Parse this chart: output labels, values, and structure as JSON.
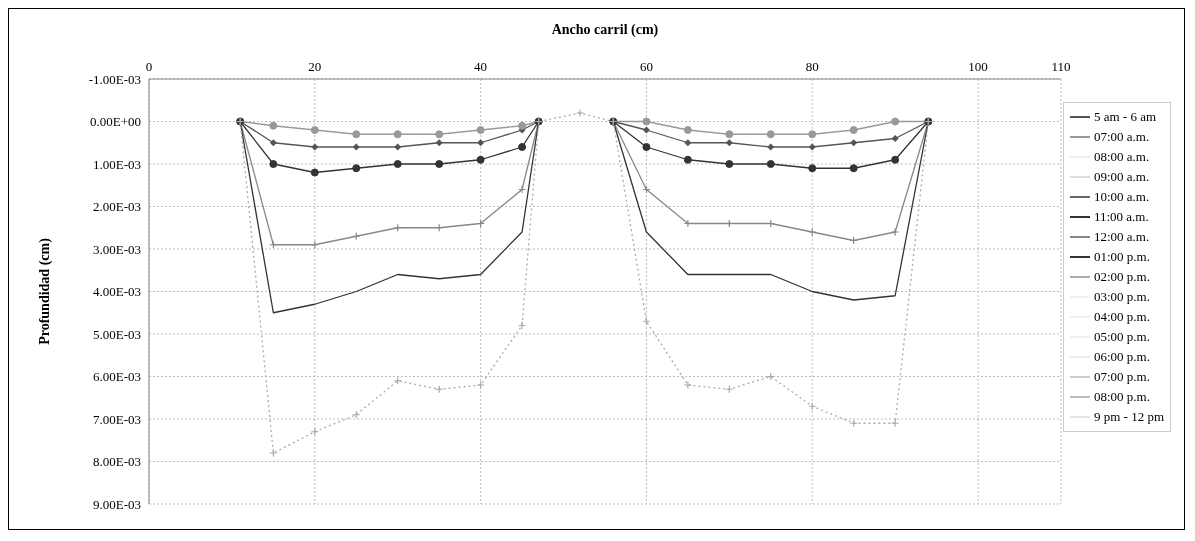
{
  "chart_data": {
    "type": "line",
    "xlabel": "Ancho carril (cm)",
    "ylabel": "Profundidad (cm)",
    "x": [
      11,
      15,
      20,
      25,
      30,
      35,
      40,
      45,
      47,
      52,
      56,
      60,
      65,
      70,
      75,
      80,
      85,
      90,
      94
    ],
    "xlim": [
      0,
      110
    ],
    "xticks": [
      0,
      20,
      40,
      60,
      80,
      100,
      110
    ],
    "ylim": [
      0.009,
      -0.001
    ],
    "yticks": [
      {
        "value": -0.001,
        "label": "-1.00E-03"
      },
      {
        "value": 0,
        "label": "0.00E+00"
      },
      {
        "value": 0.001,
        "label": "1.00E-03"
      },
      {
        "value": 0.002,
        "label": "2.00E-03"
      },
      {
        "value": 0.003,
        "label": "3.00E-03"
      },
      {
        "value": 0.004,
        "label": "4.00E-03"
      },
      {
        "value": 0.005,
        "label": "5.00E-03"
      },
      {
        "value": 0.006,
        "label": "6.00E-03"
      },
      {
        "value": 0.007,
        "label": "7.00E-03"
      },
      {
        "value": 0.008,
        "label": "8.00E-03"
      },
      {
        "value": 0.009,
        "label": "9.00E-03"
      }
    ],
    "grid": true,
    "legend": "right",
    "series": [
      {
        "name": "5 am - 6 am",
        "color": "#555555",
        "marker": "diamond",
        "values": [
          0,
          0.0005,
          0.0006,
          0.0006,
          0.0006,
          0.0005,
          0.0005,
          0.0002,
          0,
          null,
          0,
          0.0002,
          0.0005,
          0.0005,
          0.0006,
          0.0006,
          0.0005,
          0.0004,
          0
        ]
      },
      {
        "name": "07:00 a.m.",
        "color": "#999999",
        "marker": "circle",
        "values": [
          0,
          0.0001,
          0.0002,
          0.0003,
          0.0003,
          0.0003,
          0.0002,
          0.0001,
          0,
          null,
          0,
          0,
          0.0002,
          0.0003,
          0.0003,
          0.0003,
          0.0002,
          0,
          0
        ]
      },
      {
        "name": "08:00 a.m.",
        "color": "#eeeeee",
        "values": [
          null,
          null,
          null,
          null,
          null,
          null,
          null,
          null,
          null,
          null,
          null,
          null,
          null,
          null,
          null,
          null,
          null,
          null,
          null
        ]
      },
      {
        "name": "09:00 a.m.",
        "color": "#dddddd",
        "values": [
          null,
          null,
          null,
          null,
          null,
          null,
          null,
          null,
          null,
          null,
          null,
          null,
          null,
          null,
          null,
          null,
          null,
          null,
          null
        ]
      },
      {
        "name": "10:00 a.m.",
        "color": "#666666",
        "marker": "square",
        "values": [
          null,
          null,
          null,
          null,
          null,
          null,
          null,
          null,
          null,
          null,
          null,
          null,
          null,
          null,
          null,
          null,
          null,
          null,
          null
        ]
      },
      {
        "name": "11:00 a.m.",
        "color": "#333333",
        "marker": "circle",
        "values": [
          0,
          0.001,
          0.0012,
          0.0011,
          0.001,
          0.001,
          0.0009,
          0.0006,
          0,
          null,
          0,
          0.0006,
          0.0009,
          0.001,
          0.001,
          0.0011,
          0.0011,
          0.0009,
          0
        ]
      },
      {
        "name": "12:00 a.m.",
        "color": "#888888",
        "marker": "cross",
        "values": [
          0,
          0.0029,
          0.0029,
          0.0027,
          0.0025,
          0.0025,
          0.0024,
          0.0016,
          0,
          null,
          0,
          0.0016,
          0.0024,
          0.0024,
          0.0024,
          0.0026,
          0.0028,
          0.0026,
          0
        ]
      },
      {
        "name": "01:00 p.m.",
        "color": "#333333",
        "marker": "none",
        "values": [
          0,
          0.0045,
          0.0043,
          0.004,
          0.0036,
          0.0037,
          0.0036,
          0.0026,
          0,
          null,
          0,
          0.0026,
          0.0036,
          0.0036,
          0.0036,
          0.004,
          0.0042,
          0.0041,
          0
        ]
      },
      {
        "name": "02:00 p.m.",
        "color": "#aaaaaa",
        "marker": "cross",
        "line_style": "dotted",
        "values": [
          0,
          0.0078,
          0.0073,
          0.0069,
          0.0061,
          0.0063,
          0.0062,
          0.0048,
          0,
          -0.0002,
          0,
          0.0047,
          0.0062,
          0.0063,
          0.006,
          0.0067,
          0.0071,
          0.0071,
          0
        ]
      },
      {
        "name": "03:00 p.m.",
        "color": "#f2f2f2",
        "values": [
          null,
          null,
          null,
          null,
          null,
          null,
          null,
          null,
          null,
          null,
          null,
          null,
          null,
          null,
          null,
          null,
          null,
          null,
          null
        ]
      },
      {
        "name": "04:00 p.m.",
        "color": "#f0f0f0",
        "values": [
          null,
          null,
          null,
          null,
          null,
          null,
          null,
          null,
          null,
          null,
          null,
          null,
          null,
          null,
          null,
          null,
          null,
          null,
          null
        ]
      },
      {
        "name": "05:00 p.m.",
        "color": "#efefef",
        "values": [
          null,
          null,
          null,
          null,
          null,
          null,
          null,
          null,
          null,
          null,
          null,
          null,
          null,
          null,
          null,
          null,
          null,
          null,
          null
        ]
      },
      {
        "name": "06:00 p.m.",
        "color": "#ededed",
        "values": [
          null,
          null,
          null,
          null,
          null,
          null,
          null,
          null,
          null,
          null,
          null,
          null,
          null,
          null,
          null,
          null,
          null,
          null,
          null
        ]
      },
      {
        "name": "07:00 p.m.",
        "color": "#cccccc",
        "values": [
          null,
          null,
          null,
          null,
          null,
          null,
          null,
          null,
          null,
          null,
          null,
          null,
          null,
          null,
          null,
          null,
          null,
          null,
          null
        ]
      },
      {
        "name": "08:00 p.m.",
        "color": "#bbbbbb",
        "values": [
          null,
          null,
          null,
          null,
          null,
          null,
          null,
          null,
          null,
          null,
          null,
          null,
          null,
          null,
          null,
          null,
          null,
          null,
          null
        ]
      },
      {
        "name": "9 pm - 12 pm",
        "color": "#e5e5e5",
        "values": [
          null,
          null,
          null,
          null,
          null,
          null,
          null,
          null,
          null,
          null,
          null,
          null,
          null,
          null,
          null,
          null,
          null,
          null,
          null
        ]
      }
    ]
  }
}
